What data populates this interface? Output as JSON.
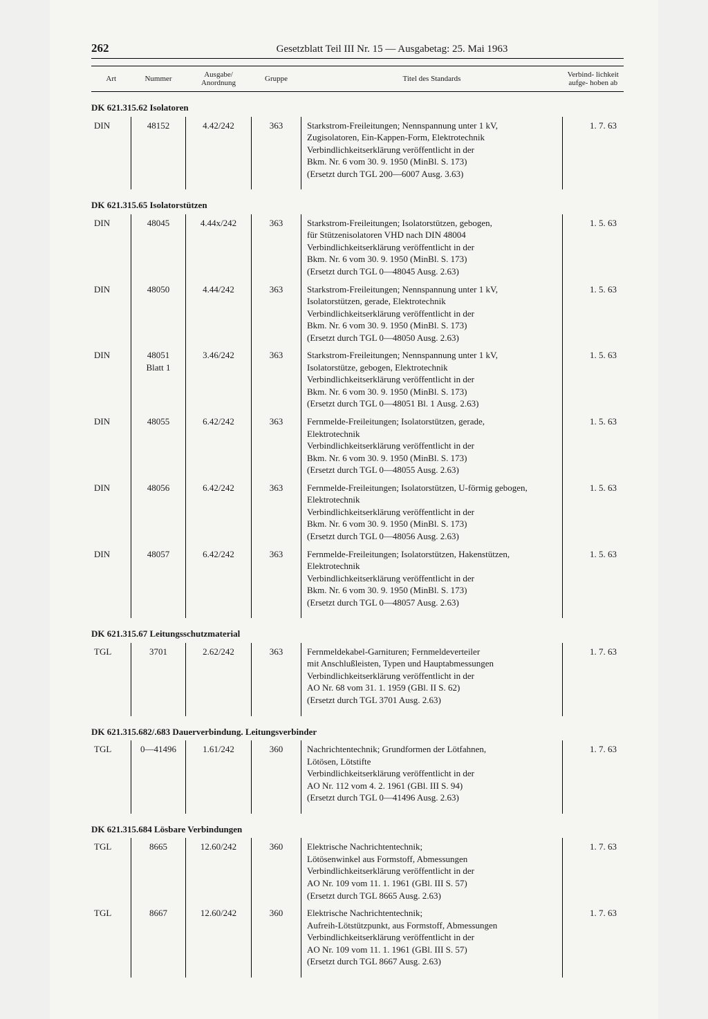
{
  "page": {
    "number": "262",
    "header": "Gesetzblatt Teil III Nr. 15 — Ausgabetag: 25. Mai 1963"
  },
  "columns": {
    "art": "Art",
    "nummer": "Nummer",
    "ausgabe": "Ausgabe/\nAnordnung",
    "gruppe": "Gruppe",
    "titel": "Titel des Standards",
    "verbind": "Verbind-\nlichkeit\naufge-\nhoben ab"
  },
  "sections": [
    {
      "heading": "DK 621.315.62 Isolatoren",
      "rows": [
        {
          "art": "DIN",
          "nummer": "48152",
          "ausgabe": "4.42/242",
          "gruppe": "363",
          "titel": "Starkstrom-Freileitungen; Nennspannung unter 1 kV,\nZugisolatoren, Ein-Kappen-Form, Elektrotechnik\nVerbindlichkeitserklärung veröffentlicht in der\nBkm. Nr. 6 vom 30. 9. 1950 (MinBl. S. 173)\n(Ersetzt durch TGL 200—6007 Ausg. 3.63)",
          "date": "1. 7. 63"
        }
      ]
    },
    {
      "heading": "DK 621.315.65 Isolatorstützen",
      "rows": [
        {
          "art": "DIN",
          "nummer": "48045",
          "ausgabe": "4.44x/242",
          "gruppe": "363",
          "titel": "Starkstrom-Freileitungen; Isolatorstützen, gebogen,\nfür Stützenisolatoren VHD nach DIN 48004\nVerbindlichkeitserklärung veröffentlicht in der\nBkm. Nr. 6 vom 30. 9. 1950 (MinBl. S. 173)\n(Ersetzt durch TGL 0—48045 Ausg. 2.63)",
          "date": "1. 5. 63"
        },
        {
          "art": "DIN",
          "nummer": "48050",
          "ausgabe": "4.44/242",
          "gruppe": "363",
          "titel": "Starkstrom-Freileitungen; Nennspannung unter 1 kV,\nIsolatorstützen, gerade, Elektrotechnik\nVerbindlichkeitserklärung veröffentlicht in der\nBkm. Nr. 6 vom 30. 9. 1950 (MinBl. S. 173)\n(Ersetzt durch TGL 0—48050 Ausg. 2.63)",
          "date": "1. 5. 63"
        },
        {
          "art": "DIN",
          "nummer": "48051\nBlatt 1",
          "ausgabe": "3.46/242",
          "gruppe": "363",
          "titel": "Starkstrom-Freileitungen; Nennspannung unter 1 kV,\nIsolatorstütze, gebogen, Elektrotechnik\nVerbindlichkeitserklärung veröffentlicht in der\nBkm. Nr. 6 vom 30. 9. 1950 (MinBl. S. 173)\n(Ersetzt durch TGL 0—48051 Bl. 1 Ausg. 2.63)",
          "date": "1. 5. 63"
        },
        {
          "art": "DIN",
          "nummer": "48055",
          "ausgabe": "6.42/242",
          "gruppe": "363",
          "titel": "Fernmelde-Freileitungen; Isolatorstützen, gerade,\nElektrotechnik\nVerbindlichkeitserklärung veröffentlicht in der\nBkm. Nr. 6 vom 30. 9. 1950 (MinBl. S. 173)\n(Ersetzt durch TGL 0—48055 Ausg. 2.63)",
          "date": "1. 5. 63"
        },
        {
          "art": "DIN",
          "nummer": "48056",
          "ausgabe": "6.42/242",
          "gruppe": "363",
          "titel": "Fernmelde-Freileitungen; Isolatorstützen, U-förmig gebogen,\nElektrotechnik\nVerbindlichkeitserklärung veröffentlicht in der\nBkm. Nr. 6 vom 30. 9. 1950 (MinBl. S. 173)\n(Ersetzt durch TGL 0—48056 Ausg. 2.63)",
          "date": "1. 5. 63"
        },
        {
          "art": "DIN",
          "nummer": "48057",
          "ausgabe": "6.42/242",
          "gruppe": "363",
          "titel": "Fernmelde-Freileitungen; Isolatorstützen, Hakenstützen,\nElektrotechnik\nVerbindlichkeitserklärung veröffentlicht in der\nBkm. Nr. 6 vom 30. 9. 1950 (MinBl. S. 173)\n(Ersetzt durch TGL 0—48057 Ausg. 2.63)",
          "date": "1. 5. 63"
        }
      ]
    },
    {
      "heading": "DK 621.315.67 Leitungsschutzmaterial",
      "rows": [
        {
          "art": "TGL",
          "nummer": "3701",
          "ausgabe": "2.62/242",
          "gruppe": "363",
          "titel": "Fernmeldekabel-Garnituren; Fernmeldeverteiler\nmit Anschlußleisten, Typen und Hauptabmessungen\nVerbindlichkeitserklärung veröffentlicht in der\nAO Nr. 68 vom 31. 1. 1959 (GBl. II S. 62)\n(Ersetzt durch TGL 3701 Ausg. 2.63)",
          "date": "1. 7. 63"
        }
      ]
    },
    {
      "heading": "DK 621.315.682/.683 Dauerverbindung. Leitungsverbinder",
      "rows": [
        {
          "art": "TGL",
          "nummer": "0—41496",
          "ausgabe": "1.61/242",
          "gruppe": "360",
          "titel": "Nachrichtentechnik; Grundformen der Lötfahnen,\nLötösen, Lötstifte\nVerbindlichkeitserklärung veröffentlicht in der\nAO Nr. 112 vom 4. 2. 1961 (GBl. III S. 94)\n(Ersetzt durch TGL 0—41496 Ausg. 2.63)",
          "date": "1. 7. 63"
        }
      ]
    },
    {
      "heading": "DK 621.315.684 Lösbare Verbindungen",
      "rows": [
        {
          "art": "TGL",
          "nummer": "8665",
          "ausgabe": "12.60/242",
          "gruppe": "360",
          "titel": "Elektrische Nachrichtentechnik;\nLötösenwinkel aus Formstoff, Abmessungen\nVerbindlichkeitserklärung veröffentlicht in der\nAO Nr. 109 vom 11. 1. 1961 (GBl. III S. 57)\n(Ersetzt durch TGL 8665 Ausg. 2.63)",
          "date": "1. 7. 63"
        },
        {
          "art": "TGL",
          "nummer": "8667",
          "ausgabe": "12.60/242",
          "gruppe": "360",
          "titel": "Elektrische Nachrichtentechnik;\nAufreih-Lötstützpunkt, aus Formstoff, Abmessungen\nVerbindlichkeitserklärung veröffentlicht in der\nAO Nr. 109 vom 11. 1. 1961 (GBl. III S. 57)\n(Ersetzt durch TGL 8667 Ausg. 2.63)",
          "date": "1. 7. 63"
        }
      ]
    }
  ]
}
